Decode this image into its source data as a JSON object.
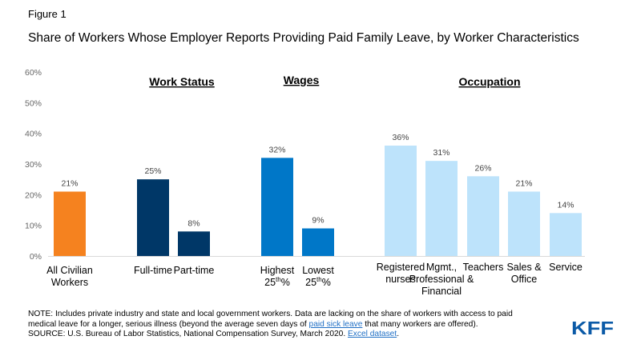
{
  "figure_label": "Figure 1",
  "title": "Share of Workers Whose Employer Reports Providing Paid Family Leave, by Worker Characteristics",
  "note": {
    "prefix": "NOTE: Includes private industry and state and local government workers. Data are lacking on the share of workers with access to paid medical leave for a longer, serious illness (beyond the average seven days of ",
    "link1": "paid sick leave",
    "middle": " that many workers are offered).",
    "source_prefix": "SOURCE: U.S. Bureau of Labor Statistics, National Compensation Survey, March 2020. ",
    "link2": "Excel dataset",
    "source_suffix": "."
  },
  "logo_text": "KFF",
  "colors": {
    "all_workers": "#f5821f",
    "work_status": "#003767",
    "wages": "#0077c8",
    "occupation": "#bde3fb",
    "axis_text": "#666666",
    "grid": "#d9d9d9"
  },
  "chart_data": {
    "type": "bar",
    "ylim": [
      0,
      60
    ],
    "yticks": [
      "0%",
      "10%",
      "20%",
      "30%",
      "40%",
      "50%",
      "60%"
    ],
    "grid": false,
    "group_headers": [
      {
        "label": "Work Status"
      },
      {
        "label": "Wages"
      },
      {
        "label": "Occupation"
      }
    ],
    "bars": [
      {
        "label_lines": [
          "All Civilian",
          "Workers"
        ],
        "value": 21,
        "value_label": "21%",
        "color_key": "all_workers"
      },
      {
        "label_lines": [
          "Full-time"
        ],
        "value": 25,
        "value_label": "25%",
        "color_key": "work_status"
      },
      {
        "label_lines": [
          "Part-time"
        ],
        "value": 8,
        "value_label": "8%",
        "color_key": "work_status"
      },
      {
        "label_lines": [
          "Highest",
          "25th%"
        ],
        "value": 32,
        "value_label": "32%",
        "color_key": "wages"
      },
      {
        "label_lines": [
          "Lowest",
          "25th%"
        ],
        "value": 9,
        "value_label": "9%",
        "color_key": "wages"
      },
      {
        "label_lines": [
          "Registered",
          "nurses"
        ],
        "value": 36,
        "value_label": "36%",
        "color_key": "occupation"
      },
      {
        "label_lines": [
          "Mgmt.,",
          "Professional &",
          "Financial"
        ],
        "value": 31,
        "value_label": "31%",
        "color_key": "occupation"
      },
      {
        "label_lines": [
          "Teachers"
        ],
        "value": 26,
        "value_label": "26%",
        "color_key": "occupation"
      },
      {
        "label_lines": [
          "Sales &",
          "Office"
        ],
        "value": 21,
        "value_label": "21%",
        "color_key": "occupation"
      },
      {
        "label_lines": [
          "Service"
        ],
        "value": 14,
        "value_label": "14%",
        "color_key": "occupation"
      }
    ]
  }
}
